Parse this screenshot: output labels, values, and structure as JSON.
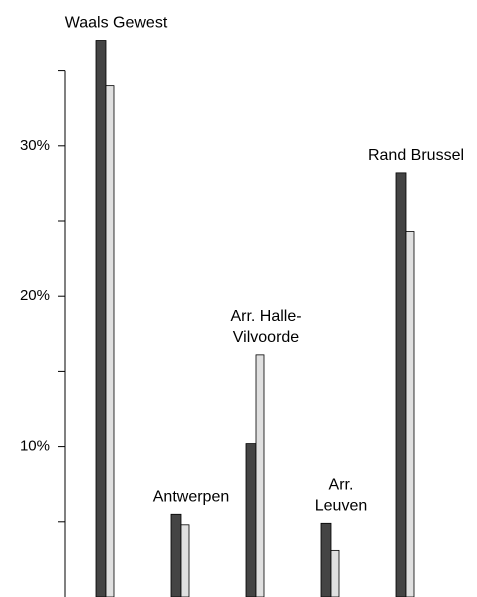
{
  "chart_data": {
    "type": "bar",
    "categories": [
      [
        "Waals Gewest"
      ],
      [
        "Antwerpen"
      ],
      [
        "Arr. Halle-",
        "Vilvoorde"
      ],
      [
        "Arr.",
        "Leuven"
      ],
      [
        "Rand Brussel"
      ]
    ],
    "series": [
      {
        "color": "#444444",
        "values": [
          37.0,
          5.5,
          10.2,
          4.9,
          28.2
        ]
      },
      {
        "color": "#e0e0e0",
        "values": [
          34.0,
          4.8,
          16.1,
          3.1,
          24.3
        ]
      }
    ],
    "ylim": [
      0,
      37.5
    ],
    "yticks": [
      {
        "value": 10,
        "label": "10%"
      },
      {
        "value": 20,
        "label": "20%"
      },
      {
        "value": 30,
        "label": "30%"
      }
    ],
    "minor_yticks": [
      5,
      15,
      25,
      35
    ]
  }
}
